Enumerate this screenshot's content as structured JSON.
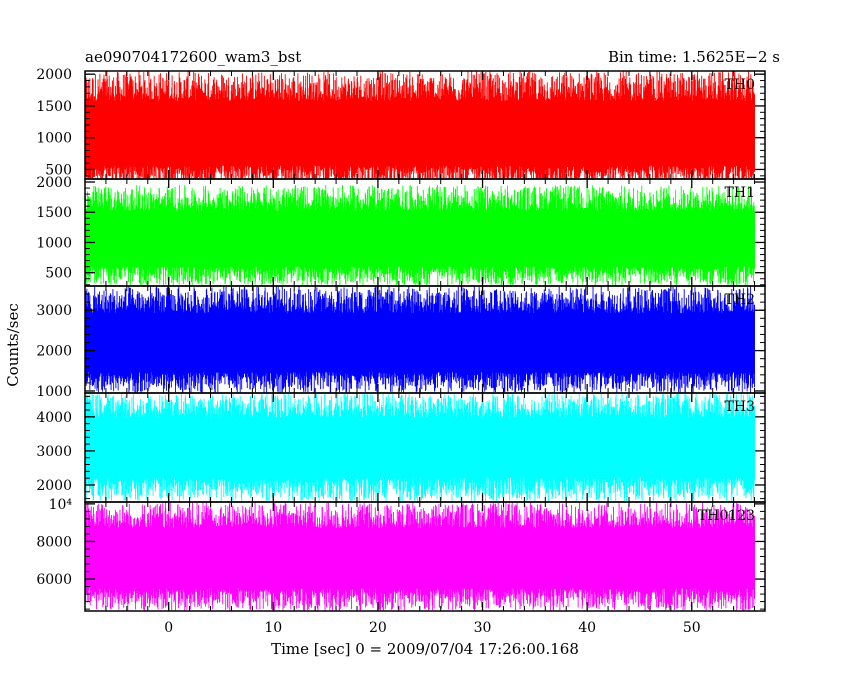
{
  "header": {
    "left_title": "ae090704172600_wam3_bst",
    "right_title": "Bin time: 1.5625E−2 s"
  },
  "chart_data": {
    "type": "line",
    "ylabel": "Counts/sec",
    "xlabel": "Time [sec] 0 = 2009/07/04 17:26:00.168",
    "xlim": [
      -8.0,
      57.0
    ],
    "data_x_range": [
      -8.0,
      56.0
    ],
    "x_ticks": [
      0,
      10,
      20,
      30,
      40,
      50
    ],
    "x_tick_labels": [
      "0",
      "10",
      "20",
      "30",
      "40",
      "50"
    ],
    "panels": [
      {
        "name": "TH0",
        "color": "#ff0000",
        "ylim": [
          350,
          2050
        ],
        "y_ticks": [
          500,
          1000,
          1500,
          2000
        ],
        "y_tick_labels": [
          "500",
          "1000",
          "1500",
          "2000"
        ],
        "mean": 1000,
        "spread": [
          200,
          2050
        ]
      },
      {
        "name": "TH1",
        "color": "#00ff00",
        "ylim": [
          280,
          2050
        ],
        "y_ticks": [
          500,
          1000,
          1500,
          2000
        ],
        "y_tick_labels": [
          "500",
          "1000",
          "1500",
          "2000"
        ],
        "mean": 1000,
        "spread": [
          280,
          1950
        ]
      },
      {
        "name": "TH2",
        "color": "#0000ff",
        "ylim": [
          950,
          3600
        ],
        "y_ticks": [
          1000,
          2000,
          3000
        ],
        "y_tick_labels": [
          "1000",
          "2000",
          "3000"
        ],
        "mean": 2100,
        "spread": [
          950,
          3600
        ]
      },
      {
        "name": "TH3",
        "color": "#00ffff",
        "ylim": [
          1500,
          4700
        ],
        "y_ticks": [
          2000,
          3000,
          4000
        ],
        "y_tick_labels": [
          "2000",
          "3000",
          "4000"
        ],
        "mean": 3100,
        "spread": [
          1500,
          4700
        ]
      },
      {
        "name": "TH0123",
        "color": "#ff00ff",
        "ylim": [
          4300,
          10100
        ],
        "y_ticks": [
          6000,
          8000,
          10000
        ],
        "y_tick_labels": [
          "6000",
          "8000",
          "10⁴"
        ],
        "mean": 7000,
        "spread": [
          4300,
          10100
        ]
      }
    ]
  }
}
